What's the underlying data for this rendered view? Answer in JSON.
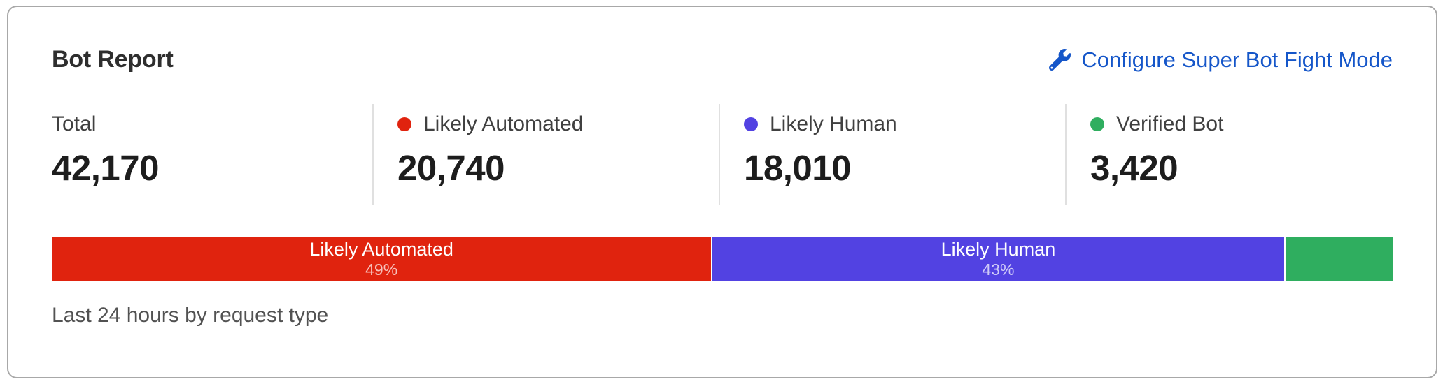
{
  "header": {
    "title": "Bot Report",
    "configure_link_label": "Configure Super Bot Fight Mode"
  },
  "stats": {
    "total": {
      "label": "Total",
      "value": "42,170"
    },
    "likely_automated": {
      "label": "Likely Automated",
      "value": "20,740",
      "color": "#e0230e"
    },
    "likely_human": {
      "label": "Likely Human",
      "value": "18,010",
      "color": "#5242e2"
    },
    "verified_bot": {
      "label": "Verified Bot",
      "value": "3,420",
      "color": "#2fae5f"
    }
  },
  "caption": "Last 24 hours by request type",
  "colors": {
    "link_blue": "#1556c9",
    "likely_automated_red": "#e0230e",
    "likely_human_indigo": "#5242e2",
    "verified_bot_green": "#2fae5f"
  },
  "chart_data": {
    "type": "bar",
    "subtype": "horizontal-stacked-percentage",
    "title": "Bot Report",
    "caption": "Last 24 hours by request type",
    "total": 42170,
    "categories": [
      "Likely Automated",
      "Likely Human",
      "Verified Bot"
    ],
    "values": [
      20740,
      18010,
      3420
    ],
    "percent_labels": [
      "49%",
      "43%",
      "8%"
    ],
    "segments": [
      {
        "label": "Likely Automated",
        "value": 20740,
        "pct": 49.18,
        "pct_label": "49%",
        "color": "#e0230e",
        "show_label": true
      },
      {
        "label": "Likely Human",
        "value": 18010,
        "pct": 42.71,
        "pct_label": "43%",
        "color": "#5242e2",
        "show_label": true
      },
      {
        "label": "Verified Bot",
        "value": 3420,
        "pct": 8.11,
        "pct_label": "8%",
        "color": "#2fae5f",
        "show_label": false
      }
    ]
  }
}
